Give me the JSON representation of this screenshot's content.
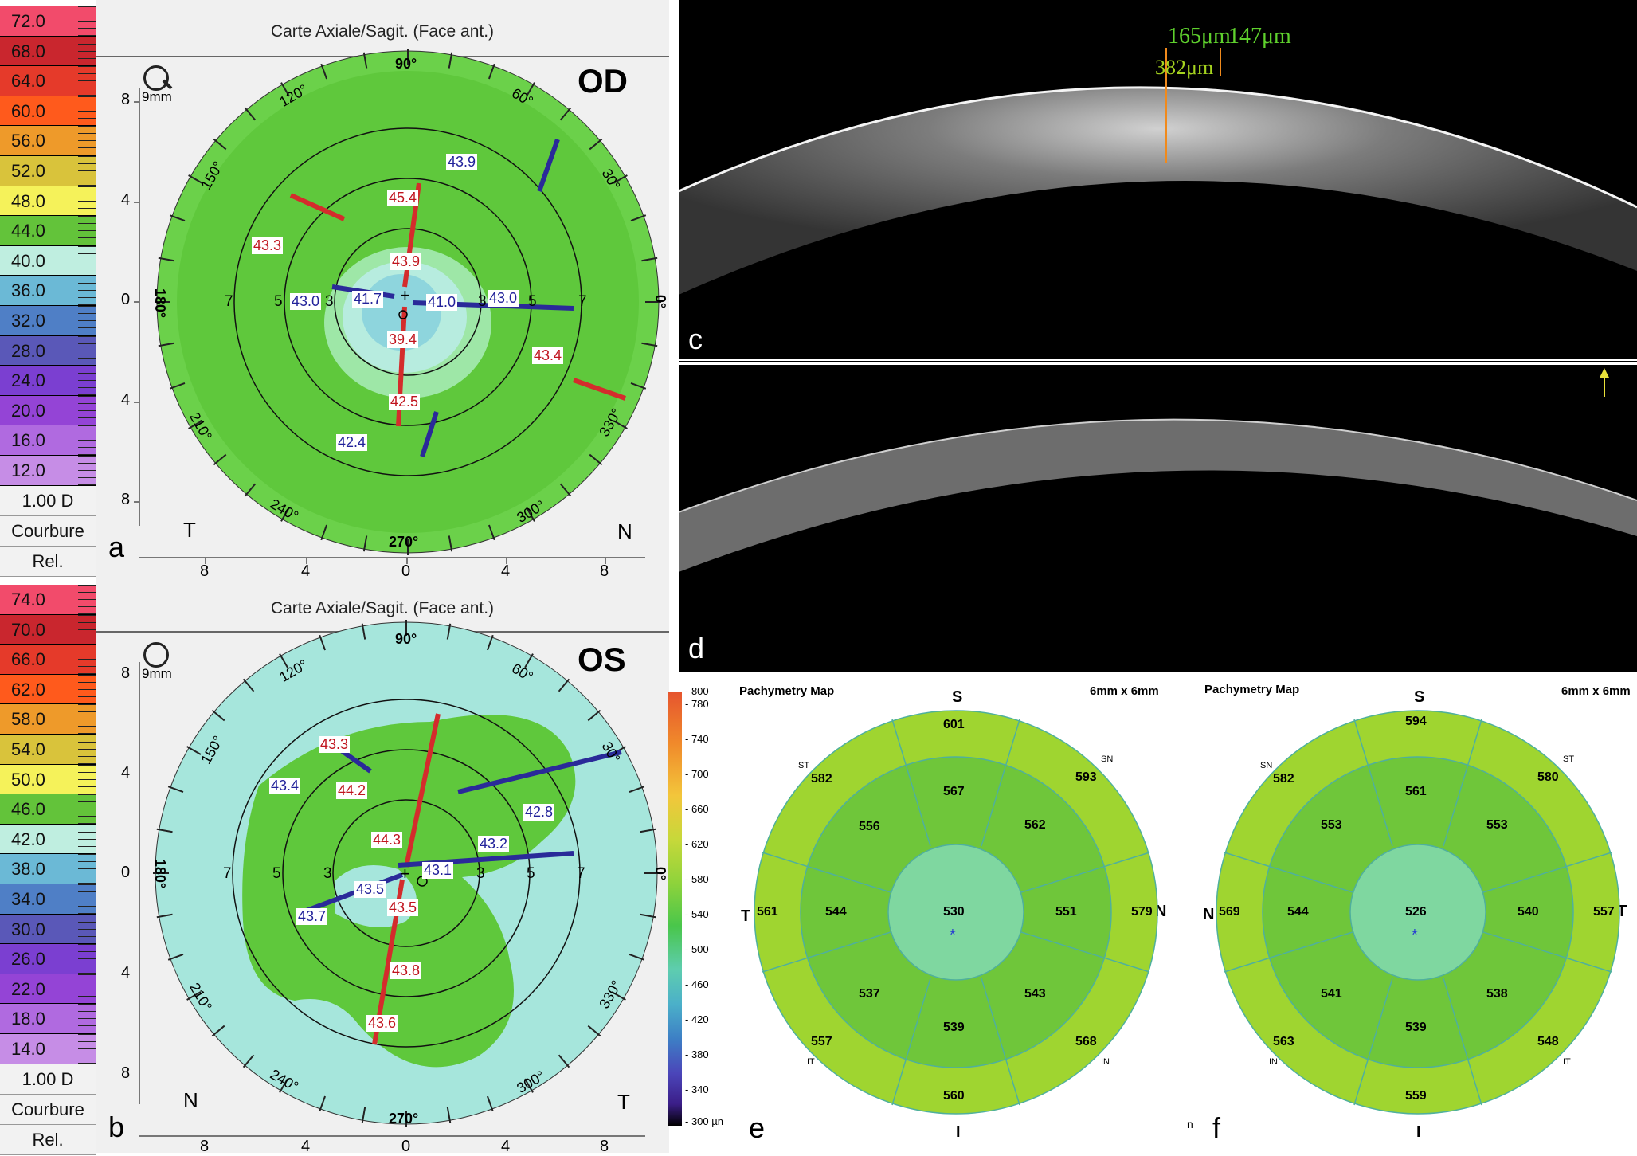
{
  "panel_a": {
    "scale": [
      "72.0",
      "68.0",
      "64.0",
      "60.0",
      "56.0",
      "52.0",
      "48.0",
      "44.0",
      "40.0",
      "36.0",
      "32.0",
      "28.0",
      "24.0",
      "20.0",
      "16.0",
      "12.0"
    ],
    "scale_colors": [
      "#f24b6b",
      "#c9262e",
      "#e53a2a",
      "#ff5a1c",
      "#ee9a2a",
      "#d9c33b",
      "#f5f25a",
      "#63c33a",
      "#bfeee0",
      "#6bb9d6",
      "#4f7fc6",
      "#5a58b8",
      "#7b3fd1",
      "#9444d6",
      "#b06ae0",
      "#c68de6"
    ],
    "unit": "1.00 D",
    "foot1": "Courbure",
    "foot2": "Rel.",
    "title": "Carte Axiale/Sagit. (Face ant.)",
    "eye": "OD",
    "zoom": "9mm",
    "side_left": "T",
    "side_right": "N",
    "deg_90": "90°",
    "deg_270": "270°",
    "deg_0": "0°",
    "deg_180": "180°",
    "deg_120": "120°",
    "deg_60": "60°",
    "deg_150": "150°",
    "deg_30": "30°",
    "deg_210": "210°",
    "deg_330": "330°",
    "deg_240": "240°",
    "deg_300": "300°",
    "yticks": [
      "8",
      "4",
      "0",
      "4",
      "8"
    ],
    "xticks": [
      "8",
      "4",
      "0",
      "4",
      "8"
    ],
    "values_red": [
      "45.4",
      "43.9",
      "39.4",
      "42.5",
      "43.3",
      "43.4"
    ],
    "values_blue": [
      "43.9",
      "43.0",
      "41.7",
      "41.0",
      "43.0",
      "42.4"
    ],
    "ring_labels": [
      "7",
      "5",
      "3",
      "3",
      "5",
      "7"
    ],
    "letter": "a"
  },
  "panel_b": {
    "scale": [
      "74.0",
      "70.0",
      "66.0",
      "62.0",
      "58.0",
      "54.0",
      "50.0",
      "46.0",
      "42.0",
      "38.0",
      "34.0",
      "30.0",
      "26.0",
      "22.0",
      "18.0",
      "14.0"
    ],
    "unit": "1.00 D",
    "foot1": "Courbure",
    "foot2": "Rel.",
    "title": "Carte Axiale/Sagit. (Face ant.)",
    "eye": "OS",
    "zoom": "9mm",
    "side_left": "N",
    "side_right": "T",
    "values_red": [
      "43.3",
      "44.2",
      "44.3",
      "43.5",
      "43.8",
      "43.6"
    ],
    "values_blue": [
      "43.4",
      "42.8",
      "43.2",
      "43.1",
      "43.5",
      "43.7"
    ],
    "letter": "b"
  },
  "panel_c": {
    "m1": "165μm",
    "m2": "147μm",
    "m3": "382μm",
    "letter": "c"
  },
  "panel_d": {
    "letter": "d"
  },
  "pachy_scale": {
    "ticks": [
      "800",
      "780",
      "740",
      "700",
      "660",
      "620",
      "580",
      "540",
      "500",
      "460",
      "420",
      "380",
      "340",
      "300 µn"
    ]
  },
  "panel_e": {
    "title": "Pachymetry Map",
    "size": "6mm x 6mm",
    "top": "S",
    "bottom": "I",
    "left": "T",
    "right": "N",
    "corner_tl": "ST",
    "corner_tr": "SN",
    "corner_bl": "IT",
    "corner_br": "IN",
    "outer": [
      "601",
      "593",
      "579",
      "568",
      "560",
      "557",
      "561",
      "582"
    ],
    "mid": [
      "567",
      "562",
      "551",
      "543",
      "539",
      "537",
      "544",
      "556"
    ],
    "center": "530",
    "letter": "e"
  },
  "panel_f": {
    "title": "Pachymetry Map",
    "size": "6mm x 6mm",
    "top": "S",
    "bottom": "I",
    "left": "N",
    "right": "T",
    "corner_tl": "SN",
    "corner_tr": "ST",
    "corner_bl": "IN",
    "corner_br": "IT",
    "outer": [
      "594",
      "580",
      "557",
      "548",
      "559",
      "563",
      "569",
      "582"
    ],
    "mid": [
      "561",
      "553",
      "540",
      "538",
      "539",
      "541",
      "544",
      "553"
    ],
    "center": "526",
    "small_n": "n",
    "letter": "f"
  }
}
